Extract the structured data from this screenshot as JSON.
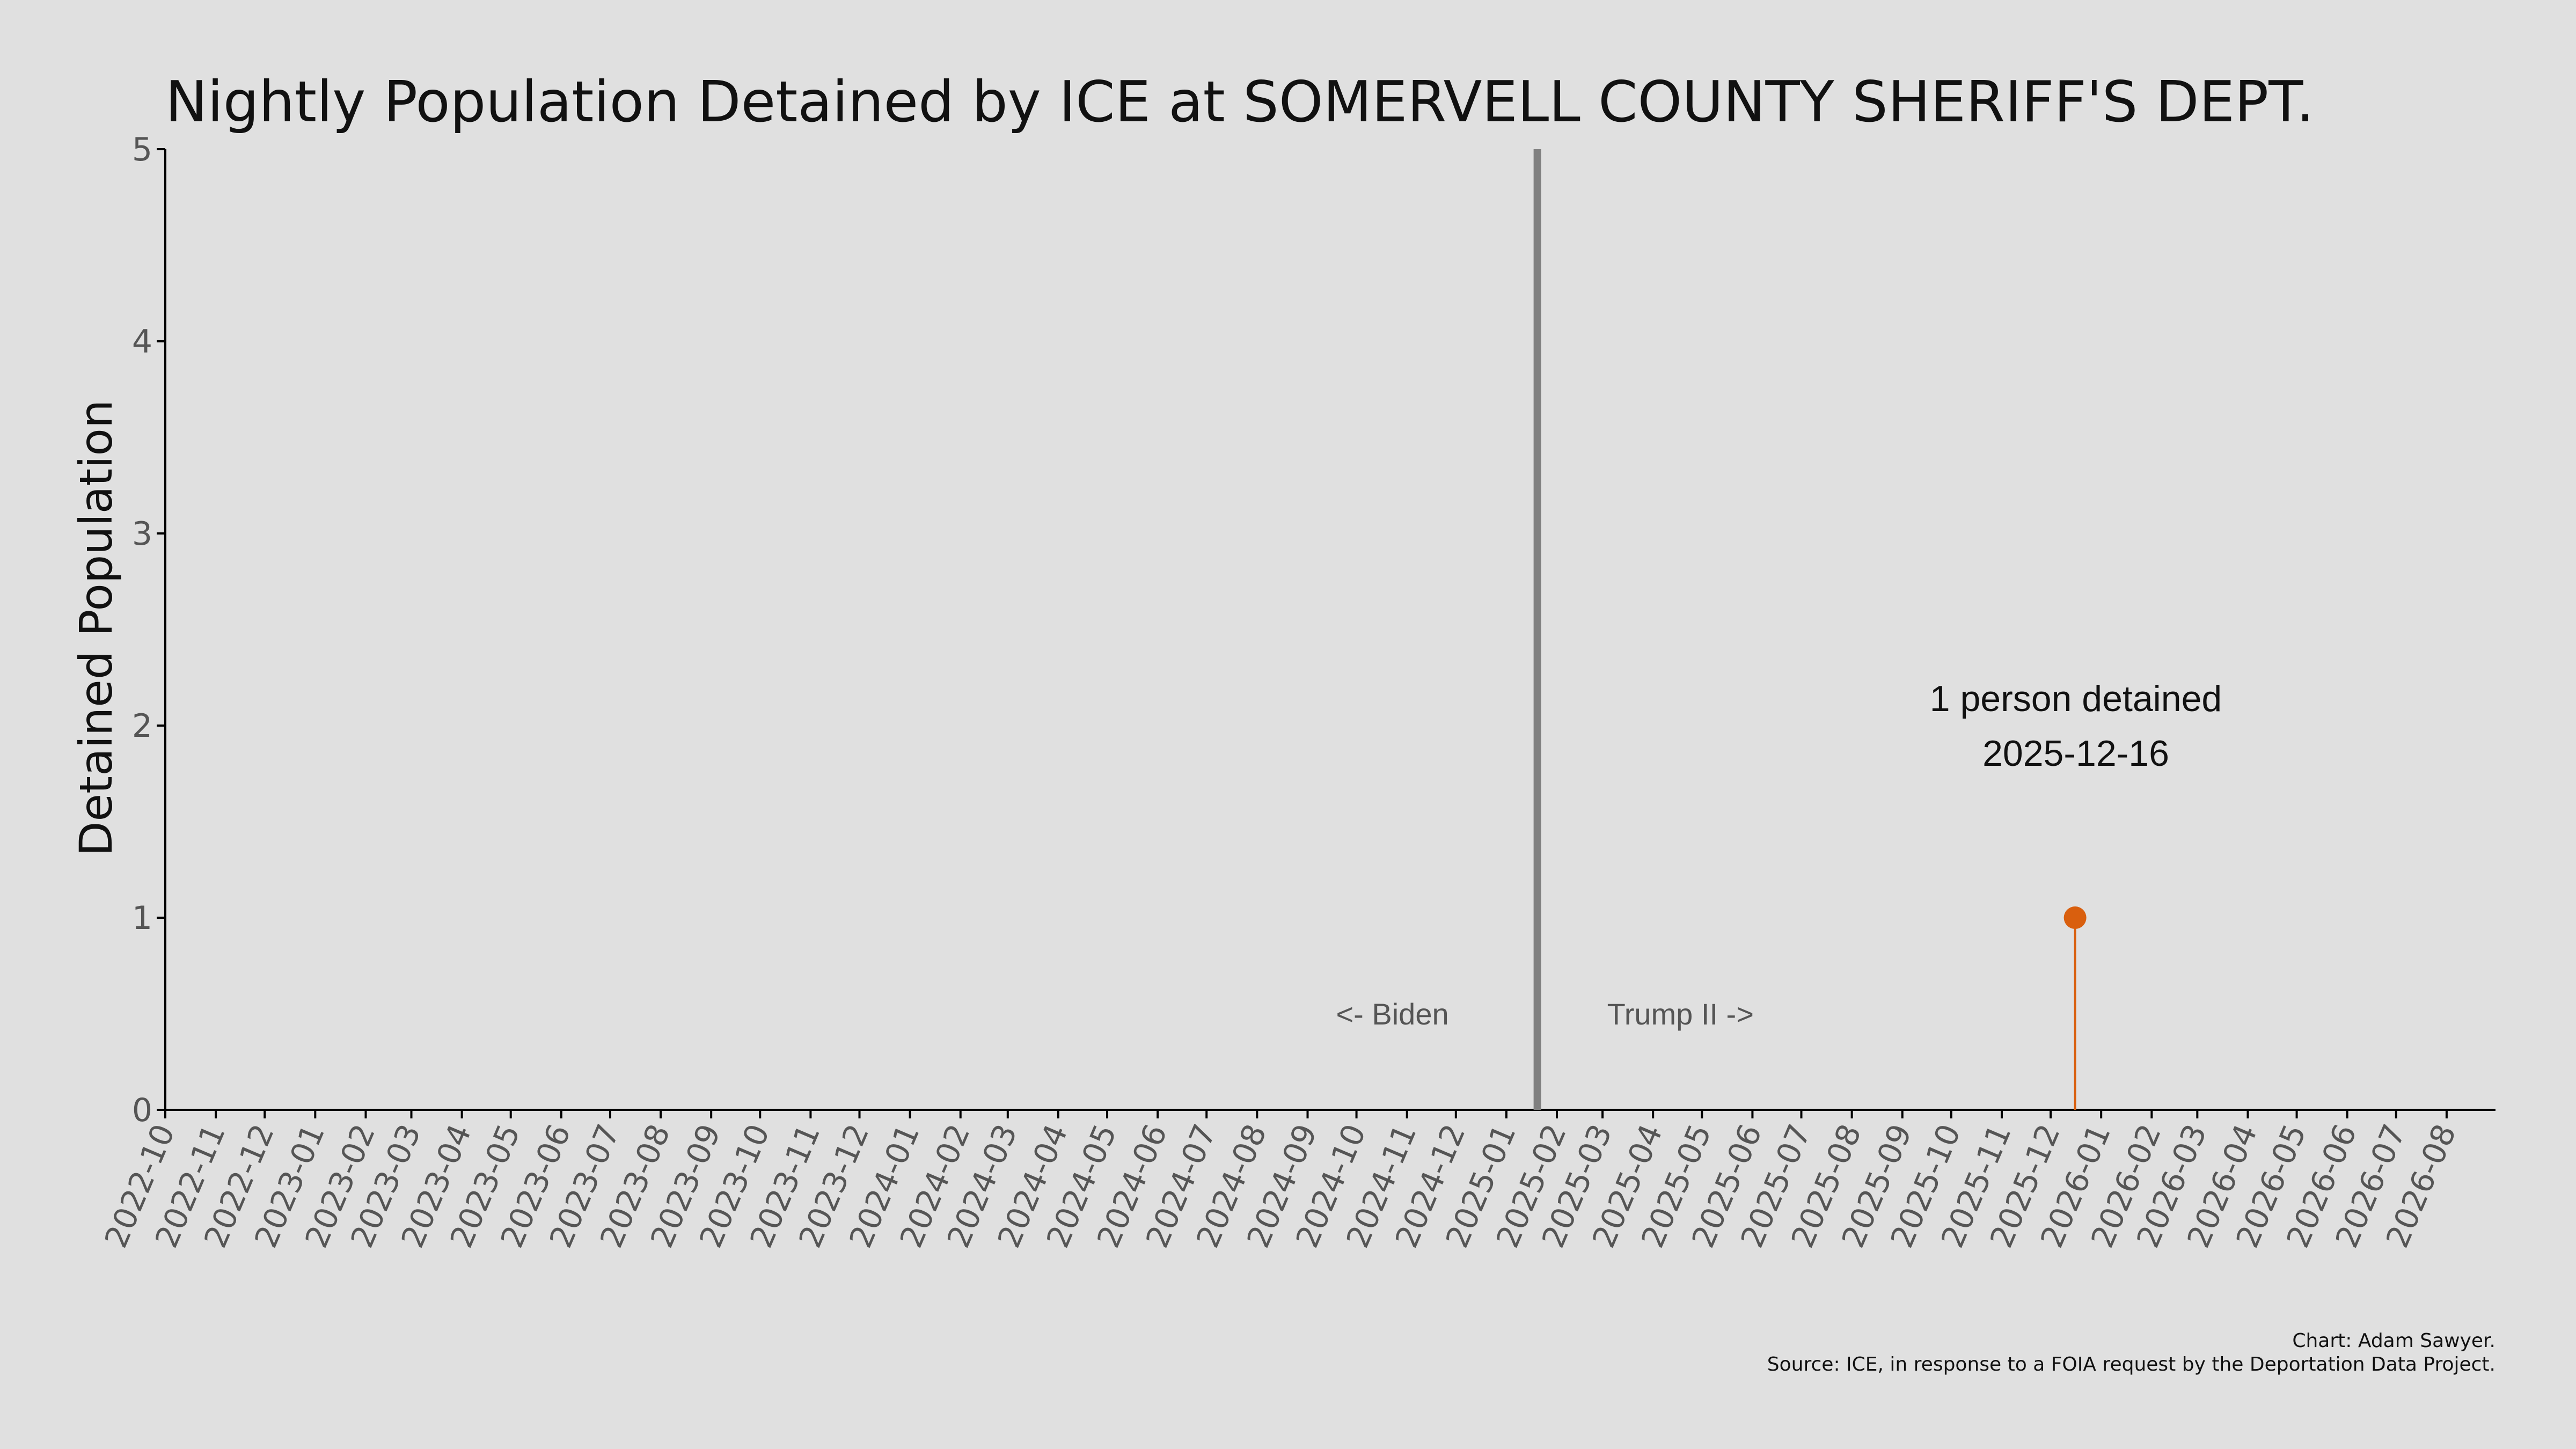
{
  "chart_data": {
    "type": "scatter",
    "title": "Nightly Population Detained by ICE at SOMERVELL COUNTY SHERIFF'S DEPT.",
    "ylabel": "Detained Population",
    "xlabel": "",
    "xlim": [
      "2022-10-01",
      "2026-08-31"
    ],
    "ylim": [
      0,
      5
    ],
    "yticks": [
      "0",
      "1",
      "2",
      "3",
      "4",
      "5"
    ],
    "xticks": [
      "2022-10",
      "2022-11",
      "2022-12",
      "2023-01",
      "2023-02",
      "2023-03",
      "2023-04",
      "2023-05",
      "2023-06",
      "2023-07",
      "2023-08",
      "2023-09",
      "2023-10",
      "2023-11",
      "2023-12",
      "2024-01",
      "2024-02",
      "2024-03",
      "2024-04",
      "2024-05",
      "2024-06",
      "2024-07",
      "2024-08",
      "2024-09",
      "2024-10",
      "2024-11",
      "2024-12",
      "2025-01",
      "2025-02",
      "2025-03",
      "2025-04",
      "2025-05",
      "2025-06",
      "2025-07",
      "2025-08",
      "2025-09",
      "2025-10",
      "2025-11",
      "2025-12",
      "2026-01",
      "2026-02",
      "2026-03",
      "2026-04",
      "2026-05",
      "2026-06",
      "2026-07",
      "2026-08"
    ],
    "grid": false,
    "series": [
      {
        "x": [
          "2025-12-16"
        ],
        "y": [
          1
        ],
        "color": "#d95f0e"
      }
    ],
    "vertical_line": {
      "x": "2025-01-20",
      "color": "#808080"
    },
    "period_labels": {
      "left": "<- Biden",
      "right": "Trump II ->"
    },
    "annotation": {
      "line1": "1 person detained",
      "line2": "2025-12-16"
    },
    "credits": {
      "author": "Chart: Adam Sawyer.",
      "source": "Source: ICE, in response to a FOIA request by the Deportation Data Project."
    },
    "colors": {
      "background": "#e0e0e0",
      "point": "#d95f0e",
      "divider": "#808080",
      "axis": "#000000"
    }
  }
}
